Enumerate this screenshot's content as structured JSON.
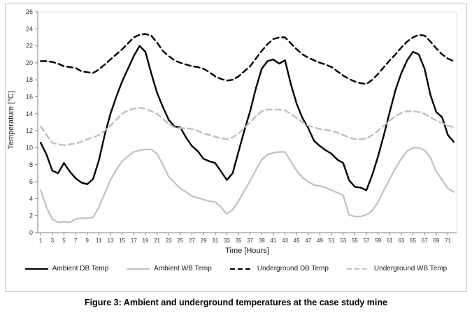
{
  "figure": {
    "caption": "Figure 3: Ambient and underground temperatures at the case study mine"
  },
  "chart_data": {
    "type": "line",
    "title": "",
    "xlabel": "Time [Hours]",
    "ylabel": "Temperature [°C]",
    "ylim": [
      0,
      26
    ],
    "y_tick_step": 2,
    "x_tick_labels_every": 2,
    "grid": false,
    "legend_position": "bottom",
    "x": [
      1,
      2,
      3,
      4,
      5,
      6,
      7,
      8,
      9,
      10,
      11,
      12,
      13,
      14,
      15,
      16,
      17,
      18,
      19,
      20,
      21,
      22,
      23,
      24,
      25,
      26,
      27,
      28,
      29,
      30,
      31,
      32,
      33,
      34,
      35,
      36,
      37,
      38,
      39,
      40,
      41,
      42,
      43,
      44,
      45,
      46,
      47,
      48,
      49,
      50,
      51,
      52,
      53,
      54,
      55,
      56,
      57,
      58,
      59,
      60,
      61,
      62,
      63,
      64,
      65,
      66,
      67,
      68,
      69,
      70,
      71,
      72
    ],
    "series": [
      {
        "id": "ambient-db-temp",
        "name": "Ambient DB Temp",
        "color": "#000000",
        "dashed": false,
        "width": 2.4,
        "values": [
          10.6,
          9.2,
          7.3,
          7.0,
          8.2,
          7.2,
          6.4,
          5.9,
          5.7,
          6.3,
          8.5,
          11.5,
          14.0,
          16.0,
          17.8,
          19.3,
          20.8,
          22.0,
          21.3,
          18.8,
          16.5,
          14.8,
          13.3,
          12.5,
          12.4,
          11.2,
          10.2,
          9.6,
          8.7,
          8.4,
          8.2,
          7.2,
          6.2,
          7.0,
          9.5,
          12.0,
          14.3,
          17.0,
          19.3,
          20.2,
          20.4,
          19.9,
          20.3,
          17.5,
          15.2,
          13.5,
          12.3,
          10.8,
          10.2,
          9.7,
          9.3,
          8.6,
          8.2,
          6.2,
          5.4,
          5.3,
          5.0,
          6.8,
          9.0,
          11.5,
          14.2,
          16.8,
          18.8,
          20.3,
          21.3,
          21.0,
          19.3,
          16.2,
          14.2,
          13.6,
          11.5,
          10.7
        ]
      },
      {
        "id": "ambient-wb-temp",
        "name": "Ambient WB Temp",
        "color": "#c0c0c0",
        "dashed": false,
        "width": 2.2,
        "values": [
          5.0,
          3.0,
          1.6,
          1.2,
          1.3,
          1.2,
          1.6,
          1.7,
          1.7,
          1.8,
          3.0,
          4.6,
          6.2,
          7.4,
          8.4,
          9.0,
          9.5,
          9.7,
          9.8,
          9.8,
          9.3,
          8.0,
          6.6,
          5.9,
          5.2,
          4.8,
          4.3,
          4.1,
          3.9,
          3.7,
          3.6,
          3.0,
          2.2,
          2.7,
          3.7,
          4.9,
          6.1,
          7.4,
          8.6,
          9.2,
          9.4,
          9.5,
          9.5,
          8.4,
          7.3,
          6.5,
          6.0,
          5.6,
          5.5,
          5.3,
          5.0,
          4.7,
          4.4,
          2.1,
          1.9,
          1.9,
          2.1,
          2.6,
          3.6,
          5.0,
          6.3,
          7.6,
          8.7,
          9.6,
          10.0,
          10.0,
          9.7,
          8.8,
          7.2,
          6.2,
          5.2,
          4.8
        ]
      },
      {
        "id": "underground-db-temp",
        "name": "Underground DB Temp",
        "color": "#000000",
        "dashed": true,
        "width": 2.4,
        "values": [
          20.2,
          20.2,
          20.1,
          19.9,
          19.6,
          19.5,
          19.4,
          19.0,
          18.9,
          18.8,
          19.2,
          19.8,
          20.4,
          21.0,
          21.6,
          22.3,
          23.0,
          23.3,
          23.4,
          23.2,
          22.4,
          21.4,
          20.8,
          20.3,
          20.0,
          19.8,
          19.6,
          19.5,
          19.3,
          18.9,
          18.4,
          18.1,
          17.9,
          18.0,
          18.4,
          19.0,
          19.6,
          20.5,
          21.4,
          22.2,
          22.8,
          23.0,
          23.0,
          22.3,
          21.6,
          21.0,
          20.6,
          20.3,
          20.0,
          19.8,
          19.5,
          19.0,
          18.5,
          18.1,
          17.8,
          17.6,
          17.5,
          18.0,
          18.7,
          19.5,
          20.3,
          21.0,
          21.8,
          22.5,
          23.0,
          23.3,
          23.2,
          22.5,
          21.7,
          21.0,
          20.5,
          20.2
        ]
      },
      {
        "id": "underground-wb-temp",
        "name": "Underground WB Temp",
        "color": "#c0c0c0",
        "dashed": true,
        "width": 2.4,
        "values": [
          12.5,
          11.5,
          10.6,
          10.4,
          10.3,
          10.4,
          10.5,
          10.7,
          11.0,
          11.2,
          11.5,
          12.0,
          12.6,
          13.3,
          14.0,
          14.4,
          14.6,
          14.7,
          14.6,
          14.3,
          14.0,
          13.4,
          12.8,
          12.4,
          12.3,
          12.3,
          12.2,
          12.0,
          11.7,
          11.5,
          11.3,
          11.1,
          11.0,
          11.2,
          11.7,
          12.3,
          13.0,
          13.7,
          14.3,
          14.5,
          14.5,
          14.5,
          14.4,
          14.0,
          13.5,
          13.0,
          12.6,
          12.4,
          12.2,
          12.1,
          12.0,
          11.8,
          11.5,
          11.2,
          11.0,
          11.0,
          11.1,
          11.5,
          12.0,
          12.6,
          13.2,
          13.7,
          14.1,
          14.3,
          14.3,
          14.2,
          14.0,
          13.6,
          13.2,
          12.9,
          12.6,
          12.4
        ]
      }
    ]
  }
}
